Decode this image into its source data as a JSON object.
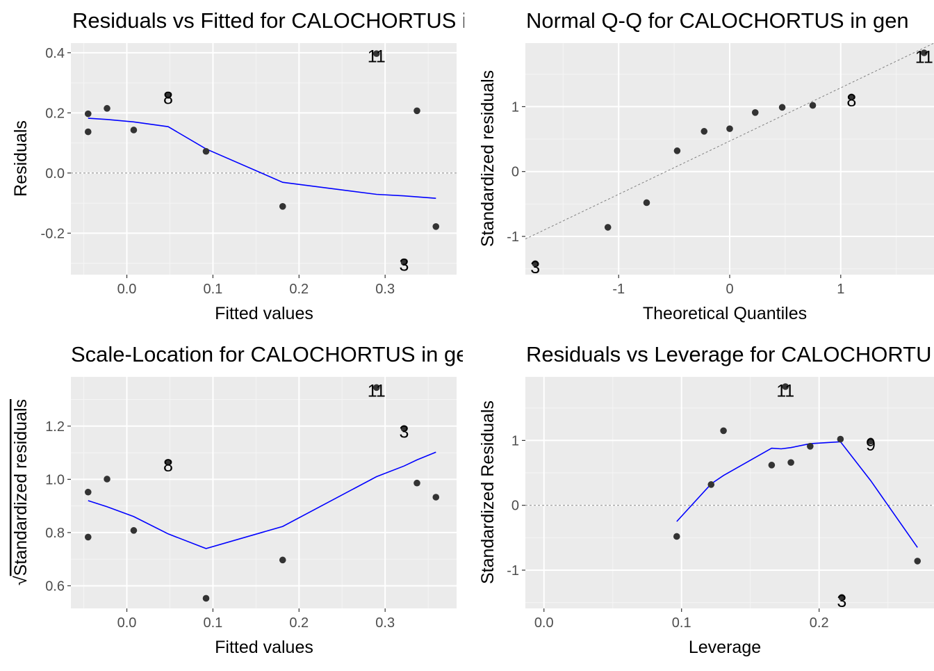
{
  "chart_data": [
    {
      "type": "scatter",
      "title": "Residuals vs Fitted for CALOCHORTUS in gen",
      "xlabel": "Fitted values",
      "ylabel": "Residuals",
      "xlim": [
        -0.065,
        0.383
      ],
      "ylim": [
        -0.338,
        0.432
      ],
      "xticks": [
        0.0,
        0.1,
        0.2,
        0.3
      ],
      "yticks": [
        -0.2,
        0.0,
        0.2,
        0.4
      ],
      "xtick_labels": [
        "0.0",
        "0.1",
        "0.2",
        "0.3"
      ],
      "ytick_labels": [
        "-0.2",
        "0.0",
        "0.2",
        "0.4"
      ],
      "points": [
        {
          "x": -0.045,
          "y": 0.197
        },
        {
          "x": -0.045,
          "y": 0.137
        },
        {
          "x": -0.023,
          "y": 0.215
        },
        {
          "x": 0.008,
          "y": 0.143
        },
        {
          "x": 0.048,
          "y": 0.258
        },
        {
          "x": 0.092,
          "y": 0.072
        },
        {
          "x": 0.181,
          "y": -0.111
        },
        {
          "x": 0.29,
          "y": 0.397
        },
        {
          "x": 0.322,
          "y": -0.297
        },
        {
          "x": 0.337,
          "y": 0.207
        },
        {
          "x": 0.359,
          "y": -0.178
        }
      ],
      "smooth": {
        "x": [
          -0.045,
          -0.023,
          0.008,
          0.048,
          0.092,
          0.181,
          0.29,
          0.322,
          0.359
        ],
        "y": [
          0.182,
          0.178,
          0.17,
          0.154,
          0.08,
          -0.031,
          -0.071,
          -0.076,
          -0.084
        ]
      },
      "reference_line": {
        "y": 0.0,
        "style": "dashed"
      },
      "point_labels": [
        {
          "text": "11",
          "x": 0.29,
          "y": 0.389
        },
        {
          "text": "8",
          "x": 0.048,
          "y": 0.25
        },
        {
          "text": "3",
          "x": 0.322,
          "y": -0.305
        }
      ]
    },
    {
      "type": "scatter",
      "title": "Normal Q-Q for CALOCHORTUS in gen",
      "xlabel": "Theoretical Quantiles",
      "ylabel": "Standardized residuals",
      "xlim": [
        -1.84,
        1.84
      ],
      "ylim": [
        -1.59,
        1.98
      ],
      "xticks": [
        -1,
        0,
        1
      ],
      "yticks": [
        -1,
        0,
        1
      ],
      "xtick_labels": [
        "-1",
        "0",
        "1"
      ],
      "ytick_labels": [
        "-1",
        "0",
        "1"
      ],
      "points": [
        {
          "x": -1.751,
          "y": -1.42
        },
        {
          "x": -1.097,
          "y": -0.86
        },
        {
          "x": -0.748,
          "y": -0.48
        },
        {
          "x": -0.473,
          "y": 0.32
        },
        {
          "x": -0.23,
          "y": 0.62
        },
        {
          "x": 0.0,
          "y": 0.66
        },
        {
          "x": 0.23,
          "y": 0.91
        },
        {
          "x": 0.473,
          "y": 0.99
        },
        {
          "x": 0.748,
          "y": 1.02
        },
        {
          "x": 1.097,
          "y": 1.15
        },
        {
          "x": 1.751,
          "y": 1.83
        }
      ],
      "reference_line": {
        "x": [
          -1.84,
          1.84
        ],
        "y": [
          -1.04,
          1.98
        ],
        "style": "dashed"
      },
      "point_labels": [
        {
          "text": "11",
          "x": 1.751,
          "y": 1.77
        },
        {
          "text": "8",
          "x": 1.097,
          "y": 1.1
        },
        {
          "text": "3",
          "x": -1.751,
          "y": -1.47
        }
      ]
    },
    {
      "type": "scatter",
      "title": "Scale-Location for CALOCHORTUS in gen",
      "xlabel": "Fitted values",
      "ylabel": "Standardized residuals",
      "ylabel_prefix": "√",
      "xlim": [
        -0.065,
        0.383
      ],
      "ylim": [
        0.515,
        1.385
      ],
      "xticks": [
        0.0,
        0.1,
        0.2,
        0.3
      ],
      "yticks": [
        0.6,
        0.8,
        1.0,
        1.2
      ],
      "xtick_labels": [
        "0.0",
        "0.1",
        "0.2",
        "0.3"
      ],
      "ytick_labels": [
        "0.6",
        "0.8",
        "1.0",
        "1.2"
      ],
      "points": [
        {
          "x": -0.045,
          "y": 0.952
        },
        {
          "x": -0.045,
          "y": 0.783
        },
        {
          "x": -0.023,
          "y": 1.001
        },
        {
          "x": 0.008,
          "y": 0.808
        },
        {
          "x": 0.048,
          "y": 1.064
        },
        {
          "x": 0.092,
          "y": 0.553
        },
        {
          "x": 0.181,
          "y": 0.697
        },
        {
          "x": 0.29,
          "y": 1.345
        },
        {
          "x": 0.322,
          "y": 1.191
        },
        {
          "x": 0.337,
          "y": 0.986
        },
        {
          "x": 0.359,
          "y": 0.933
        }
      ],
      "smooth": {
        "x": [
          -0.045,
          -0.023,
          0.008,
          0.048,
          0.092,
          0.181,
          0.29,
          0.322,
          0.337,
          0.359
        ],
        "y": [
          0.92,
          0.897,
          0.86,
          0.795,
          0.74,
          0.823,
          1.01,
          1.05,
          1.073,
          1.102
        ]
      },
      "point_labels": [
        {
          "text": "11",
          "x": 0.29,
          "y": 1.334
        },
        {
          "text": "3",
          "x": 0.322,
          "y": 1.18
        },
        {
          "text": "8",
          "x": 0.048,
          "y": 1.053
        }
      ]
    },
    {
      "type": "scatter",
      "title": "Residuals vs Leverage for CALOCHORTUS in gen",
      "xlabel": "Leverage",
      "ylabel": "Standardized Residuals",
      "xlim": [
        -0.0135,
        0.2835
      ],
      "ylim": [
        -1.59,
        1.98
      ],
      "xticks": [
        0.0,
        0.1,
        0.2
      ],
      "yticks": [
        -1,
        0,
        1
      ],
      "xtick_labels": [
        "0.0",
        "0.1",
        "0.2"
      ],
      "ytick_labels": [
        "-1",
        "0",
        "1"
      ],
      "points": [
        {
          "x": 0.0965,
          "y": -0.48
        },
        {
          "x": 0.1215,
          "y": 0.32
        },
        {
          "x": 0.1305,
          "y": 1.15
        },
        {
          "x": 0.1655,
          "y": 0.62
        },
        {
          "x": 0.1755,
          "y": 1.83
        },
        {
          "x": 0.1795,
          "y": 0.66
        },
        {
          "x": 0.1935,
          "y": 0.91
        },
        {
          "x": 0.2155,
          "y": 1.02
        },
        {
          "x": 0.2165,
          "y": -1.42
        },
        {
          "x": 0.2375,
          "y": 0.99
        },
        {
          "x": 0.2715,
          "y": -0.86
        }
      ],
      "smooth": {
        "x": [
          0.0965,
          0.1215,
          0.1305,
          0.1655,
          0.1725,
          0.1795,
          0.1935,
          0.2155,
          0.2375,
          0.2715
        ],
        "y": [
          -0.25,
          0.33,
          0.46,
          0.88,
          0.87,
          0.89,
          0.95,
          0.98,
          0.38,
          -0.65
        ]
      },
      "reference_line": {
        "y": 0.0,
        "style": "dashed"
      },
      "point_labels": [
        {
          "text": "11",
          "x": 0.1755,
          "y": 1.77
        },
        {
          "text": "9",
          "x": 0.2375,
          "y": 0.94
        },
        {
          "text": "3",
          "x": 0.2165,
          "y": -1.47
        }
      ]
    }
  ],
  "colors": {
    "panel_background": "#ebebeb",
    "grid_major": "#ffffff",
    "grid_minor": "#f5f5f5",
    "point": "#333333",
    "smooth_line": "#0000ff",
    "reference_line": "#808080",
    "tick_label": "#4d4d4d",
    "text": "#000000"
  }
}
